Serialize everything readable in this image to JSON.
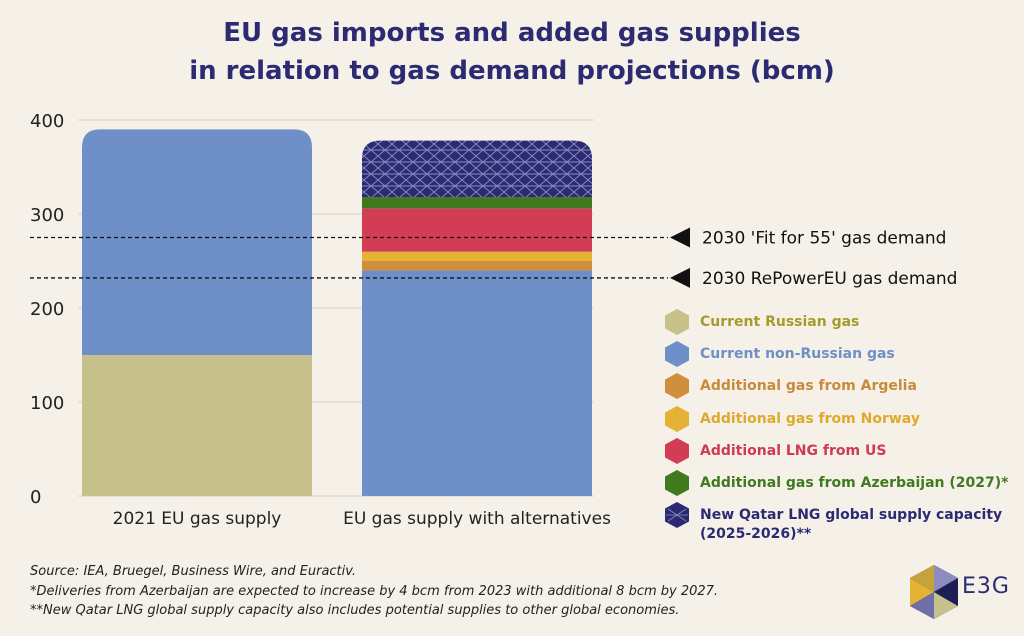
{
  "chart_data": {
    "type": "bar",
    "stacked": true,
    "title_line1": "EU gas imports and added gas supplies",
    "title_line2": "in relation to gas demand projections (bcm)",
    "categories": [
      "2021 EU gas supply",
      "EU gas supply with alternatives"
    ],
    "ylim": [
      0,
      400
    ],
    "yticks": [
      "0",
      "100",
      "200",
      "300",
      "400"
    ],
    "grid": true,
    "series": [
      {
        "name": "Current Russian gas",
        "color": "#c6c08a",
        "text_color": "#a79a2d",
        "values": [
          150,
          0
        ]
      },
      {
        "name": "Current non-Russian gas",
        "color": "#6f8fc8",
        "text_color": "#6f8fc8",
        "values": [
          240,
          240
        ]
      },
      {
        "name": "Additional gas from Argelia",
        "color": "#cf8f3e",
        "text_color": "#c98a3a",
        "values": [
          0,
          10
        ]
      },
      {
        "name": "Additional gas from Norway",
        "color": "#e5b236",
        "text_color": "#dfa92a",
        "values": [
          0,
          10
        ]
      },
      {
        "name": "Additional LNG from US",
        "color": "#d23d55",
        "text_color": "#cf3a53",
        "values": [
          0,
          46
        ]
      },
      {
        "name": "Additional gas from Azerbaijan (2027)*",
        "color": "#3f7a1f",
        "text_color": "#3f7a1f",
        "values": [
          0,
          12
        ]
      },
      {
        "name_line1": "New Qatar LNG global supply capacity",
        "name_line2": "(2025-2026)**",
        "color": "#2b2a73",
        "text_color": "#2b2a73",
        "pattern": "hex",
        "values": [
          0,
          60
        ]
      }
    ],
    "reference_lines": [
      {
        "value": 275,
        "label": "2030 'Fit for 55' gas demand"
      },
      {
        "value": 232,
        "label": "2030 RePowerEU gas demand"
      }
    ]
  },
  "notes": {
    "source": "Source: IEA, Bruegel, Business Wire, and Euractiv.",
    "note1": "*Deliveries from Azerbaijan are expected to increase by 4 bcm from 2023 with additional 8 bcm by 2027.",
    "note2": "**New Qatar LNG global supply capacity also includes potential supplies to other global economies."
  },
  "logo": {
    "text": "E3G"
  }
}
